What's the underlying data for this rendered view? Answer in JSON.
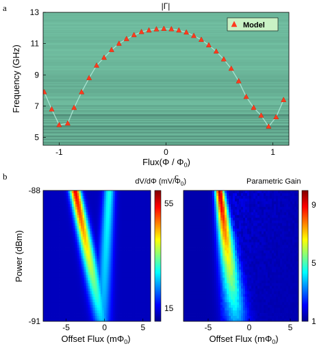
{
  "chart_data": [
    {
      "panel": "a",
      "type": "heatmap",
      "title": "|Γ|",
      "xlabel_main": "Flux",
      "xlabel_paren": "(Φ / Φ",
      "xlabel_sub": "0",
      "xlabel_close": ")",
      "ylabel": "Frequency (GHz)",
      "xlim": [
        -1.15,
        1.15
      ],
      "ylim": [
        4.5,
        13
      ],
      "xticks": [
        -1,
        0,
        1
      ],
      "yticks": [
        5,
        7,
        9,
        11,
        13
      ],
      "legend": {
        "label": "Model",
        "placement": "top-right"
      },
      "series": [
        {
          "name": "Model",
          "marker": "triangle",
          "x": [
            -1.14,
            -1.07,
            -1.0,
            -0.92,
            -0.86,
            -0.79,
            -0.72,
            -0.65,
            -0.58,
            -0.51,
            -0.44,
            -0.37,
            -0.3,
            -0.23,
            -0.16,
            -0.09,
            -0.02,
            0.05,
            0.12,
            0.19,
            0.26,
            0.33,
            0.4,
            0.47,
            0.54,
            0.61,
            0.68,
            0.75,
            0.82,
            0.89,
            0.96,
            1.03,
            1.1
          ],
          "y": [
            7.9,
            6.8,
            5.8,
            5.9,
            6.9,
            7.9,
            8.8,
            9.6,
            10.1,
            10.6,
            11.0,
            11.3,
            11.55,
            11.75,
            11.85,
            11.92,
            11.95,
            11.93,
            11.85,
            11.72,
            11.5,
            11.25,
            10.9,
            10.5,
            10.0,
            9.4,
            8.6,
            7.6,
            6.9,
            6.4,
            5.7,
            6.3,
            7.4
          ]
        }
      ]
    },
    {
      "panel": "b",
      "type": "heatmap",
      "colorbar_title": "dV/dΦ  (mV/Φ",
      "colorbar_title_sub": "0",
      "colorbar_title_close": ")",
      "xlabel": "Offset Flux (mΦ",
      "xlabel_sub": "0",
      "xlabel_close": ")",
      "ylabel": "Power (dBm)",
      "xlim": [
        -8,
        6
      ],
      "ylim": [
        -91,
        -88
      ],
      "xticks": [
        -5,
        0,
        5
      ],
      "yticks": [
        -88,
        -91
      ],
      "colorbar": {
        "range": [
          10,
          60
        ],
        "ticks": [
          55,
          15
        ]
      },
      "ridges": [
        {
          "x_top": -3.8,
          "x_bottom": -0.4,
          "peak_top": 55,
          "peak_bottom": 26
        },
        {
          "x_top": 0.6,
          "x_bottom": -0.3,
          "peak_top": 30,
          "peak_bottom": 24
        }
      ]
    },
    {
      "panel": "c",
      "type": "heatmap",
      "colorbar_title": "Parametric Gain",
      "xlabel": "Offset Flux (mΦ",
      "xlabel_sub": "0",
      "xlabel_close": ")",
      "xlim": [
        -8,
        6
      ],
      "ylim": [
        -91,
        -88
      ],
      "xticks": [
        -5,
        0,
        5
      ],
      "colorbar": {
        "range": [
          1,
          10
        ],
        "ticks": [
          9,
          5,
          1
        ]
      },
      "ridges": [
        {
          "x_top": -3.6,
          "x_bottom": -1.6,
          "peak_top": 9.5,
          "peak_bottom": 3.5
        }
      ]
    }
  ]
}
